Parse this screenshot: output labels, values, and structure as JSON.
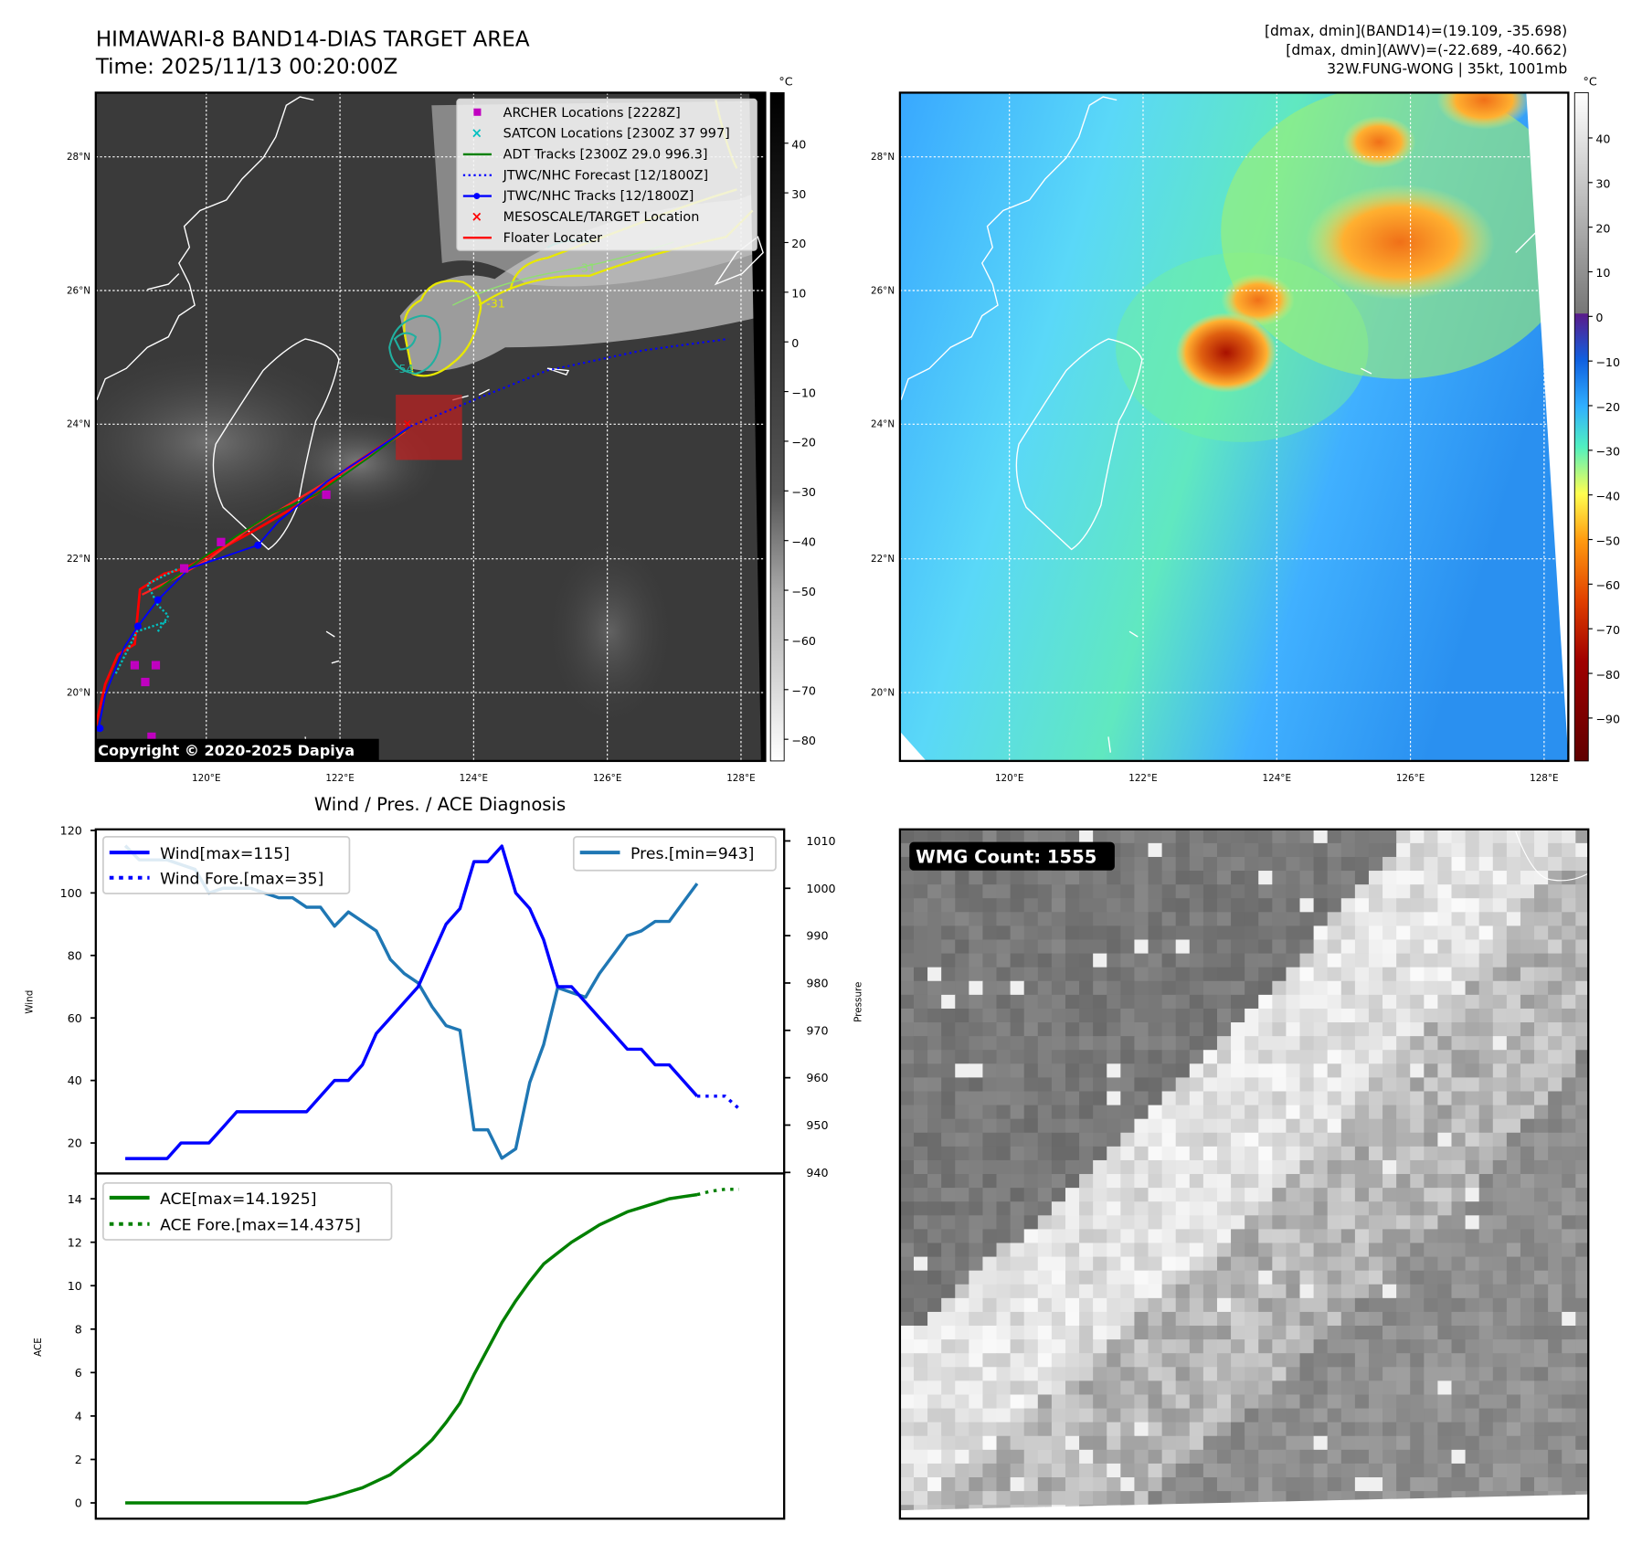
{
  "header": {
    "title_line1": "HIMAWARI-8 BAND14-DIAS TARGET AREA",
    "title_line2": "Time: 2025/11/13 00:20:00Z",
    "info_line1": "[dmax, dmin](BAND14)=(19.109, -35.698)",
    "info_line2": "[dmax, dmin](AWV)=(-22.689, -40.662)",
    "info_line3": "32W.FUNG-WONG | 35kt, 1001mb"
  },
  "map": {
    "lat_labels": [
      "20°N",
      "22°N",
      "24°N",
      "26°N",
      "28°N"
    ],
    "lon_labels": [
      "120°E",
      "122°E",
      "124°E",
      "126°E",
      "128°E"
    ],
    "copyright": "Copyright © 2020-2025 Dapiya",
    "contour_labels": [
      "-54",
      "-31",
      "-31"
    ],
    "legend": [
      {
        "label": "ARCHER Locations [2228Z]",
        "color": "#c000c0",
        "marker": "square"
      },
      {
        "label": "SATCON Locations [2300Z 37 997]",
        "color": "#00c0c0",
        "marker": "x"
      },
      {
        "label": "ADT Tracks [2300Z 29.0 996.3]",
        "color": "#008000",
        "marker": "line"
      },
      {
        "label": "JTWC/NHC Forecast [12/1800Z]",
        "color": "#0000ff",
        "marker": "dotted"
      },
      {
        "label": "JTWC/NHC Tracks [12/1800Z]",
        "color": "#0000ff",
        "marker": "line-dot"
      },
      {
        "label": "MESOSCALE/TARGET Location",
        "color": "#ff0000",
        "marker": "x"
      },
      {
        "label": "Floater Locater",
        "color": "#ff0000",
        "marker": "line"
      }
    ]
  },
  "colorbar_ir": {
    "unit": "°C",
    "ticks": [
      "40",
      "30",
      "20",
      "10",
      "0",
      "−10",
      "−20",
      "−30",
      "−40",
      "−50",
      "−60",
      "−70",
      "−80"
    ]
  },
  "colorbar_awv": {
    "unit": "°C",
    "ticks": [
      "40",
      "30",
      "20",
      "10",
      "0",
      "−10",
      "−20",
      "−30",
      "−40",
      "−50",
      "−60",
      "−70",
      "−80",
      "−90"
    ]
  },
  "wmg": {
    "label": "WMG Count: 1555"
  },
  "chart_data": [
    {
      "type": "line",
      "title": "Wind / Pres. / ACE Diagnosis",
      "ylabel": "Wind",
      "y2label": "Pressure",
      "ylim": [
        10,
        120
      ],
      "y2lim": [
        940,
        1010
      ],
      "yticks": [
        "20",
        "40",
        "60",
        "80",
        "100",
        "120"
      ],
      "y2ticks": [
        "940",
        "950",
        "960",
        "970",
        "980",
        "990",
        "1000",
        "1010"
      ],
      "series": [
        {
          "name": "Wind[max=115]",
          "color": "#0000ff",
          "style": "solid",
          "x": [
            0,
            1,
            2,
            3,
            4,
            5,
            6,
            7,
            8,
            9,
            10,
            11,
            12,
            13,
            14,
            15,
            16,
            17,
            18,
            19,
            20,
            21,
            22,
            23,
            24,
            25,
            26,
            27,
            28,
            29,
            30,
            31,
            32,
            33,
            34,
            35,
            36,
            37,
            38,
            39,
            40,
            41
          ],
          "values": [
            15,
            15,
            15,
            15,
            20,
            20,
            20,
            25,
            30,
            30,
            30,
            30,
            30,
            30,
            35,
            40,
            40,
            45,
            55,
            60,
            65,
            70,
            80,
            90,
            95,
            110,
            110,
            115,
            100,
            95,
            85,
            70,
            70,
            65,
            60,
            55,
            50,
            50,
            45,
            45,
            40,
            35
          ]
        },
        {
          "name": "Wind Fore.[max=35]",
          "color": "#0000ff",
          "style": "dotted",
          "x": [
            41,
            42,
            43,
            44
          ],
          "values": [
            35,
            35,
            35,
            31
          ]
        },
        {
          "name": "Pres.[min=943]",
          "color": "#1f77b4",
          "style": "solid",
          "axis": "right",
          "x": [
            0,
            1,
            2,
            3,
            4,
            5,
            6,
            7,
            8,
            9,
            10,
            11,
            12,
            13,
            14,
            15,
            16,
            17,
            18,
            19,
            20,
            21,
            22,
            23,
            24,
            25,
            26,
            27,
            28,
            29,
            30,
            31,
            32,
            33,
            34,
            35,
            36,
            37,
            38,
            39,
            40,
            41
          ],
          "values": [
            1009,
            1006,
            1006,
            1006,
            1005,
            1004,
            999,
            1000,
            1000,
            1000,
            999,
            998,
            998,
            996,
            996,
            992,
            995,
            993,
            991,
            985,
            982,
            980,
            975,
            971,
            970,
            949,
            949,
            943,
            945,
            959,
            967,
            979,
            978,
            977,
            982,
            986,
            990,
            991,
            993,
            993,
            997,
            1001
          ]
        }
      ]
    },
    {
      "type": "line",
      "ylabel": "ACE",
      "ylim": [
        -0.8,
        15
      ],
      "yticks": [
        "0",
        "2",
        "4",
        "6",
        "8",
        "10",
        "12",
        "14"
      ],
      "series": [
        {
          "name": "ACE[max=14.1925]",
          "color": "#008000",
          "style": "solid",
          "x": [
            0,
            1,
            2,
            3,
            4,
            5,
            6,
            7,
            8,
            9,
            10,
            11,
            12,
            13,
            14,
            15,
            16,
            17,
            18,
            19,
            20,
            21,
            22,
            23,
            24,
            25,
            26,
            27,
            28,
            29,
            30,
            31,
            32,
            33,
            34,
            35,
            36,
            37,
            38,
            39,
            40,
            41
          ],
          "values": [
            0,
            0,
            0,
            0,
            0,
            0,
            0,
            0,
            0,
            0,
            0,
            0,
            0,
            0,
            0.15,
            0.3,
            0.5,
            0.7,
            1.0,
            1.3,
            1.8,
            2.3,
            2.9,
            3.7,
            4.6,
            5.9,
            7.1,
            8.3,
            9.3,
            10.2,
            11.0,
            11.5,
            12.0,
            12.4,
            12.8,
            13.1,
            13.4,
            13.6,
            13.8,
            14.0,
            14.1,
            14.1925
          ]
        },
        {
          "name": "ACE Fore.[max=14.4375]",
          "color": "#008000",
          "style": "dotted",
          "x": [
            41,
            42,
            43,
            44
          ],
          "values": [
            14.1925,
            14.35,
            14.4375,
            14.4375
          ]
        }
      ]
    }
  ]
}
